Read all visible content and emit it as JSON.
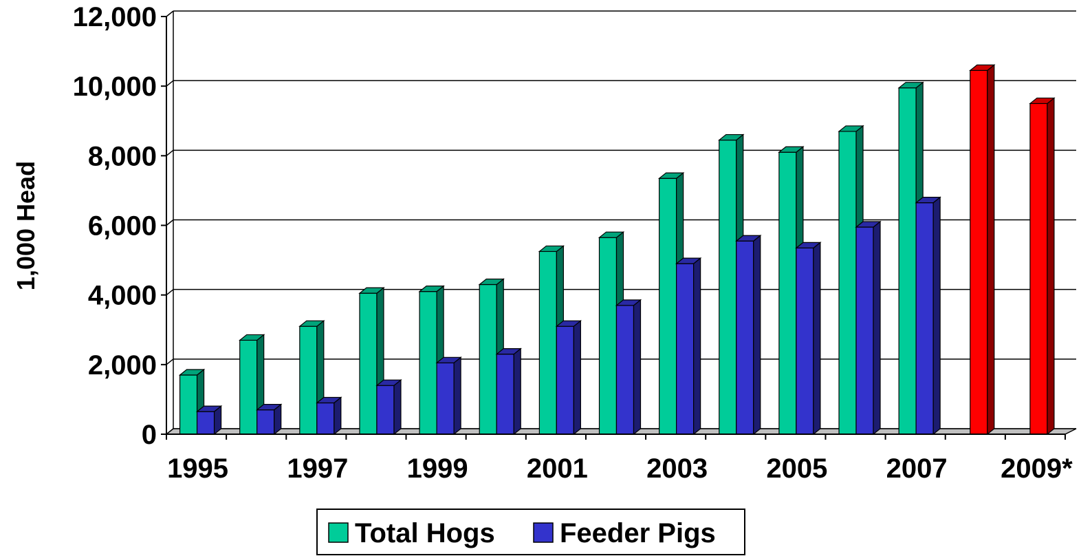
{
  "chart_data": {
    "type": "bar",
    "title": "",
    "xlabel": "",
    "ylabel": "1,000 Head",
    "ylim": [
      0,
      12000
    ],
    "yticks": [
      0,
      2000,
      4000,
      6000,
      8000,
      10000,
      12000
    ],
    "ytick_labels": [
      "0",
      "2,000",
      "4,000",
      "6,000",
      "8,000",
      "10,000",
      "12,000"
    ],
    "categories": [
      "1995",
      "1996",
      "1997",
      "1998",
      "1999",
      "2000",
      "2001",
      "2002",
      "2003",
      "2004",
      "2005",
      "2006",
      "2007",
      "2008",
      "2009*"
    ],
    "xtick_labels": [
      "1995",
      "",
      "1997",
      "",
      "1999",
      "",
      "2001",
      "",
      "2003",
      "",
      "2005",
      "",
      "2007",
      "",
      "2009*"
    ],
    "series": [
      {
        "name": "Total Hogs",
        "color": "#00cc99",
        "values": [
          1700,
          2700,
          3100,
          4050,
          4100,
          4300,
          5250,
          5650,
          7350,
          8450,
          8100,
          8700,
          9950,
          null,
          null
        ]
      },
      {
        "name": "Feeder Pigs",
        "color": "#3333cc",
        "values": [
          650,
          700,
          900,
          1400,
          2050,
          2300,
          3100,
          3700,
          4900,
          5550,
          5350,
          5950,
          6650,
          null,
          null
        ]
      },
      {
        "name": "",
        "color": "#ff0000",
        "values": [
          null,
          null,
          null,
          null,
          null,
          null,
          null,
          null,
          null,
          null,
          null,
          null,
          null,
          10450,
          9500
        ]
      }
    ],
    "grid": true,
    "legend_position": "bottom"
  }
}
